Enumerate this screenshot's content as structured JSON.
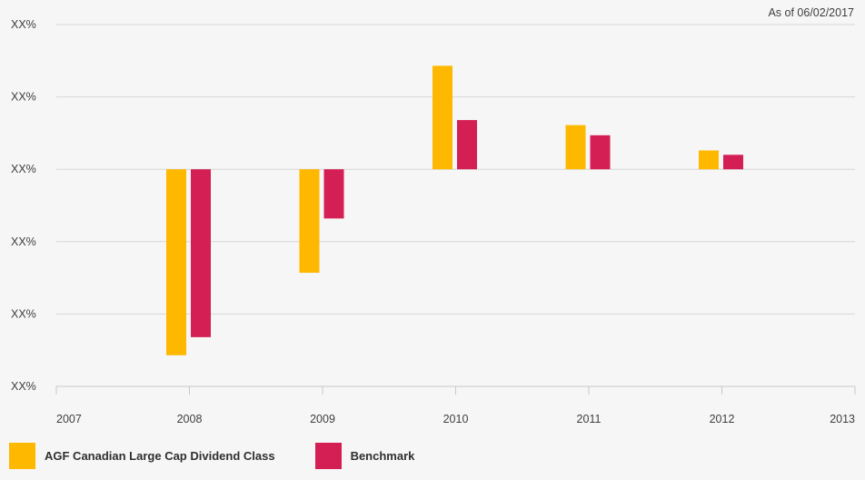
{
  "as_of": "As of 06/02/2017",
  "chart_data": {
    "type": "bar",
    "x_ticks": [
      "2007",
      "2008",
      "2009",
      "2010",
      "2011",
      "2012",
      "2013"
    ],
    "categories": [
      "2008",
      "2009",
      "2010",
      "2011",
      "2012"
    ],
    "y_tick_labels": [
      "XX%",
      "XX%",
      "XX%",
      "XX%",
      "XX%",
      "XX%"
    ],
    "ylim": [
      -30,
      20
    ],
    "series": [
      {
        "name": "AGF Canadian Large Cap Dividend Class",
        "color": "#ffb800",
        "values": [
          -25.7,
          -14.3,
          14.3,
          6.1,
          2.6
        ]
      },
      {
        "name": "Benchmark",
        "color": "#d41f55",
        "values": [
          -23.2,
          -6.8,
          6.8,
          4.7,
          2.0
        ]
      }
    ],
    "grid": true,
    "legend": "bottom-left"
  }
}
